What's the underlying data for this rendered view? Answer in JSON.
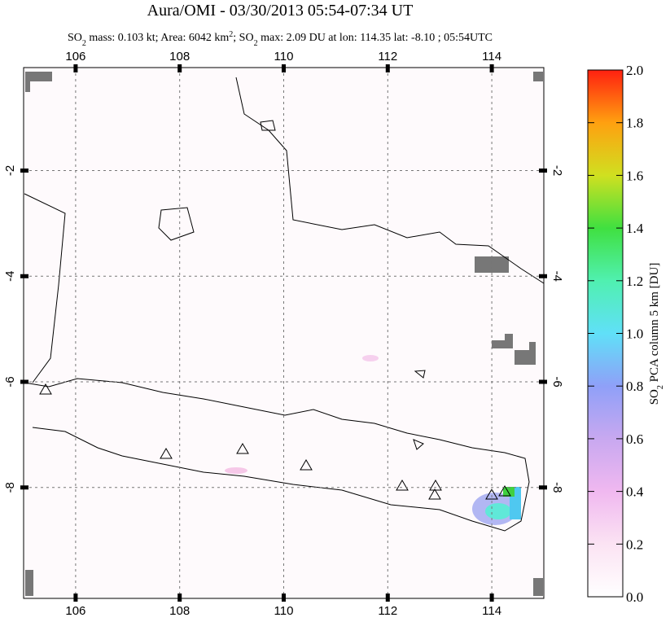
{
  "title": "Aura/OMI - 03/30/2013 05:54-07:34 UT",
  "subtitle_parts": [
    "SO",
    "2",
    " mass: 0.103 kt; Area: 6042 km",
    "2",
    "; SO",
    "2",
    " max: 2.09 DU at lon: 114.35 lat: -8.10 ; 05:54UTC"
  ],
  "map": {
    "xlim": [
      105,
      115
    ],
    "ylim": [
      -10.1,
      -0.05
    ],
    "xticks": [
      106,
      108,
      110,
      112,
      114
    ],
    "yticks": [
      -2,
      -4,
      -6,
      -8
    ]
  },
  "colorbar": {
    "label_parts": [
      "SO",
      "2",
      " PCA column 5 km [DU]"
    ],
    "lim": [
      0,
      2
    ],
    "ticks": [
      {
        "value": 0,
        "label": "0.0"
      },
      0.2,
      0.4,
      0.6,
      0.8,
      {
        "value": 1,
        "label": "1.0"
      },
      1.2,
      1.4,
      1.6,
      1.8,
      {
        "value": 2,
        "label": "2.0"
      }
    ]
  }
}
